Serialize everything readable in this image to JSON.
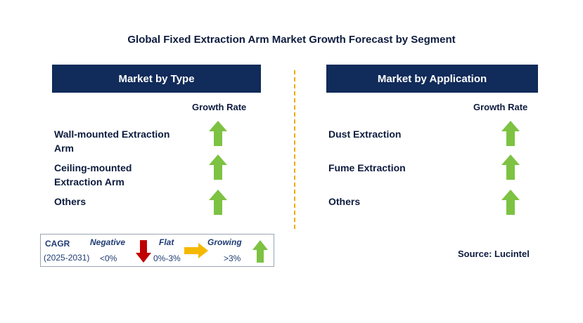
{
  "title": "Global Fixed Extraction Arm Market Growth Forecast by Segment",
  "left_panel": {
    "header": "Market by Type",
    "growth_label": "Growth Rate",
    "items": [
      {
        "label": "Wall-mounted Extraction\n Arm",
        "trend": "growing"
      },
      {
        "label": "Ceiling-mounted\n Extraction Arm",
        "trend": "growing"
      },
      {
        "label": "Others",
        "trend": "growing"
      }
    ]
  },
  "right_panel": {
    "header": "Market by Application",
    "growth_label": "Growth Rate",
    "items": [
      {
        "label": "Dust Extraction",
        "trend": "growing"
      },
      {
        "label": "Fume Extraction",
        "trend": "growing"
      },
      {
        "label": "Others",
        "trend": "growing"
      }
    ]
  },
  "legend": {
    "cagr": "CAGR",
    "period": "(2025-2031)",
    "negative_label": "Negative",
    "negative_value": "<0%",
    "flat_label": "Flat",
    "flat_value": "0%-3%",
    "growing_label": "Growing",
    "growing_value": ">3%"
  },
  "source": "Source: Lucintel",
  "colors": {
    "header_bg": "#112b5a",
    "growing": "#7dc242",
    "negative": "#c00000",
    "flat": "#f5b800",
    "divider": "#f2a900"
  }
}
